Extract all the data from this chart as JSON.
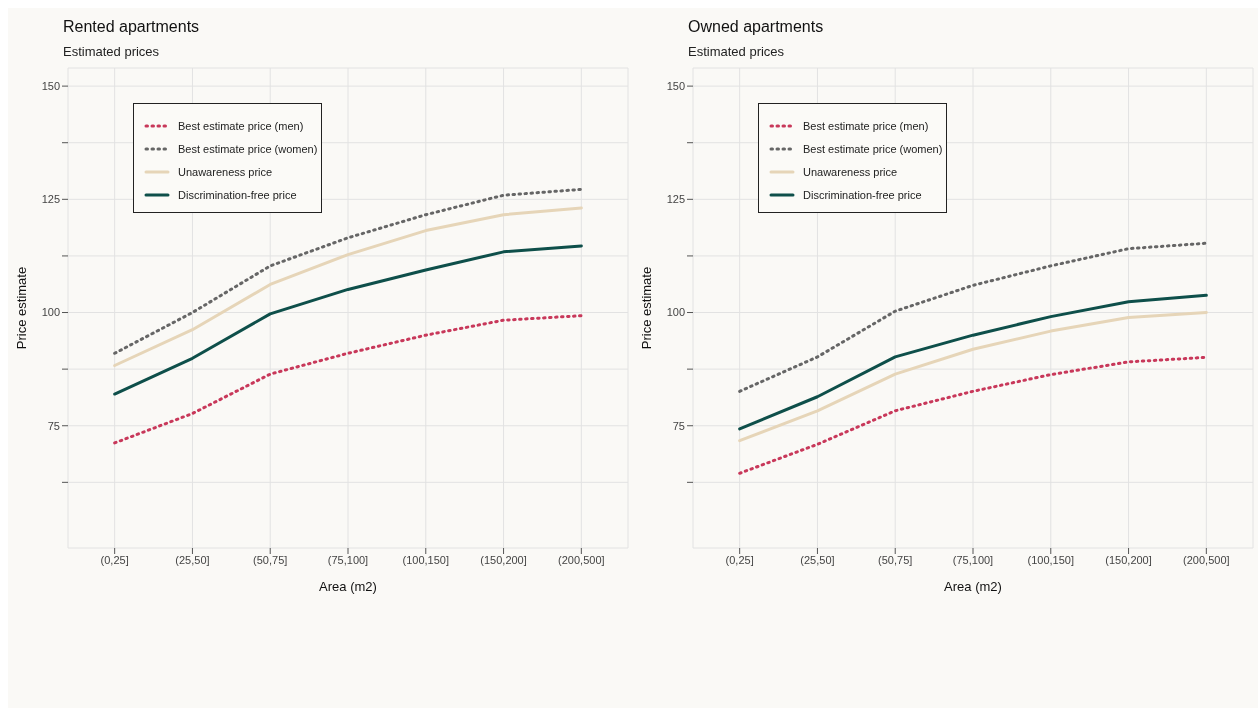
{
  "chart_data": [
    {
      "type": "line",
      "title": "Rented apartments",
      "subtitle": "Estimated prices",
      "xlabel": "Area (m2)",
      "ylabel": "Price estimate",
      "categories": [
        "(0,25]",
        "(25,50]",
        "(50,75]",
        "(75,100]",
        "(100,150]",
        "(150,200]",
        "(200,500]"
      ],
      "series": [
        {
          "name": "Best estimate price (men)",
          "color": "#c8385a",
          "line_style": "dotted",
          "values": [
            71.2,
            77.7,
            86.4,
            91.0,
            95.0,
            98.3,
            99.3
          ]
        },
        {
          "name": "Best estimate price (women)",
          "color": "#666666",
          "line_style": "dotted",
          "values": [
            91.0,
            100.0,
            110.3,
            116.5,
            121.6,
            125.9,
            127.2
          ]
        },
        {
          "name": "Unawareness price",
          "color": "#e6d5b8",
          "line_style": "solid",
          "values": [
            88.3,
            96.2,
            106.2,
            112.8,
            118.1,
            121.6,
            123.1
          ]
        },
        {
          "name": "Discrimination-free price",
          "color": "#0e4f4a",
          "line_style": "solid",
          "values": [
            82.0,
            89.9,
            99.7,
            105.1,
            109.4,
            113.4,
            114.7
          ]
        }
      ],
      "ylim": [
        48,
        154
      ],
      "yticks": [
        {
          "value": 62.5,
          "label": null
        },
        75,
        {
          "value": 87.5,
          "label": null
        },
        100,
        {
          "value": 112.5,
          "label": null
        },
        125,
        {
          "value": 137.5,
          "label": null
        },
        150
      ],
      "grid": true,
      "legend": "top left",
      "marker": "none"
    },
    {
      "type": "line",
      "title": "Owned apartments",
      "subtitle": "Estimated prices",
      "xlabel": "Area (m2)",
      "ylabel": "Price estimate",
      "categories": [
        "(0,25]",
        "(25,50]",
        "(50,75]",
        "(75,100]",
        "(100,150]",
        "(150,200]",
        "(200,500]"
      ],
      "series": [
        {
          "name": "Best estimate price (men)",
          "color": "#c8385a",
          "line_style": "dotted",
          "values": [
            64.5,
            70.9,
            78.3,
            82.6,
            86.3,
            89.1,
            90.1
          ]
        },
        {
          "name": "Best estimate price (women)",
          "color": "#666666",
          "line_style": "dotted",
          "values": [
            82.6,
            90.2,
            100.3,
            106.0,
            110.3,
            114.1,
            115.3
          ]
        },
        {
          "name": "Unawareness price",
          "color": "#e6d5b8",
          "line_style": "solid",
          "values": [
            71.7,
            78.3,
            86.4,
            91.9,
            95.9,
            98.9,
            100.0
          ]
        },
        {
          "name": "Discrimination-free price",
          "color": "#0e4f4a",
          "line_style": "solid",
          "values": [
            74.3,
            81.4,
            90.2,
            95.0,
            99.1,
            102.4,
            103.8
          ]
        }
      ],
      "ylim": [
        48,
        154
      ],
      "yticks": [
        {
          "value": 62.5,
          "label": null
        },
        75,
        {
          "value": 87.5,
          "label": null
        },
        100,
        {
          "value": 112.5,
          "label": null
        },
        125,
        {
          "value": 137.5,
          "label": null
        },
        150
      ],
      "grid": true,
      "legend": "top left",
      "marker": "none"
    }
  ]
}
